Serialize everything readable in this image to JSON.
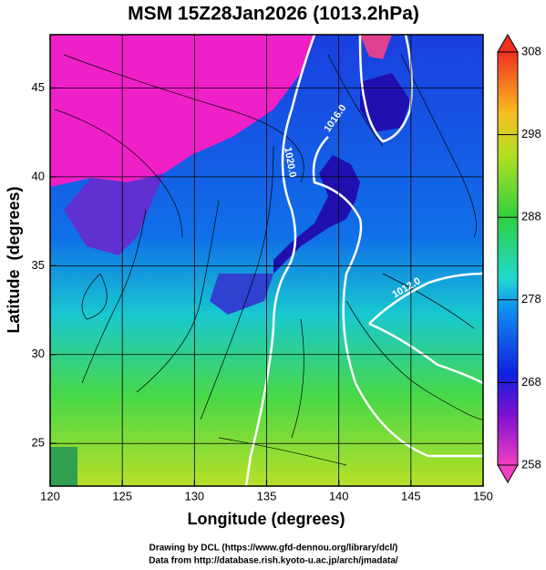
{
  "chart_data": {
    "type": "map",
    "title": "MSM 15Z28Jan2026 (1013.2hPa)",
    "xlabel": "Longitude (degrees)",
    "ylabel": "Latitude  (degrees)",
    "xlim": [
      120,
      150
    ],
    "ylim": [
      22.6,
      48.0
    ],
    "xticks": [
      120,
      125,
      130,
      135,
      140,
      145,
      150
    ],
    "yticks": [
      25,
      30,
      35,
      40,
      45
    ],
    "grid": true,
    "colorbar": {
      "lim": [
        258,
        308
      ],
      "ticks": [
        258,
        268,
        278,
        288,
        298,
        308
      ]
    },
    "contour_labels": [
      "1016.0",
      "1020.0",
      "1012.0"
    ],
    "footer": [
      "Drawing by DCL (https://www.gfd-dennou.org/library/dcl/)",
      "Data from http://database.rish.kyoto-u.ac.jp/arch/jmadata/"
    ]
  }
}
